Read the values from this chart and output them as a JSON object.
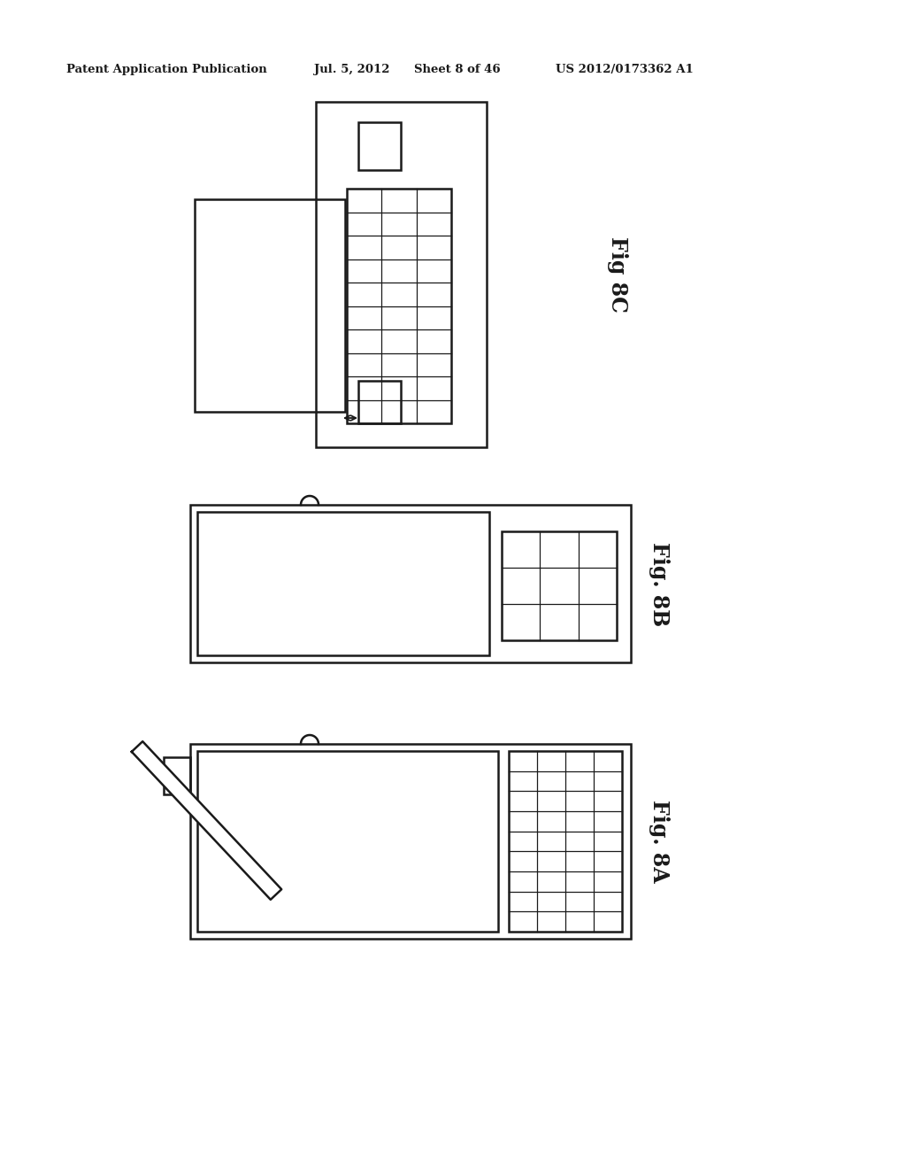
{
  "bg_color": "#ffffff",
  "line_color": "#1a1a1a",
  "header_text1": "Patent Application Publication",
  "header_text2": "Jul. 5, 2012",
  "header_text3": "Sheet 8 of 46",
  "header_text4": "US 2012/0173362 A1",
  "lw": 1.8
}
